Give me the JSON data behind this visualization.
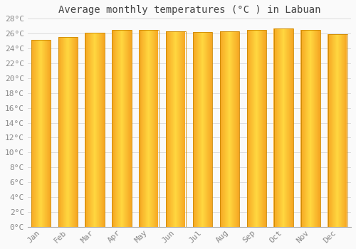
{
  "title": "Average monthly temperatures (°C ) in Labuan",
  "months": [
    "Jan",
    "Feb",
    "Mar",
    "Apr",
    "May",
    "Jun",
    "Jul",
    "Aug",
    "Sep",
    "Oct",
    "Nov",
    "Dec"
  ],
  "values": [
    25.2,
    25.5,
    26.1,
    26.5,
    26.5,
    26.3,
    26.2,
    26.3,
    26.5,
    26.7,
    26.5,
    25.9
  ],
  "ylim": [
    0,
    28
  ],
  "yticks": [
    0,
    2,
    4,
    6,
    8,
    10,
    12,
    14,
    16,
    18,
    20,
    22,
    24,
    26,
    28
  ],
  "bar_color_left": "#F5A623",
  "bar_color_center": "#FFD740",
  "bar_color_right": "#F5A623",
  "bar_edge_color": "#CC8800",
  "background_color": "#FAFAFA",
  "grid_color": "#DDDDDD",
  "title_fontsize": 10,
  "tick_fontsize": 8,
  "title_color": "#444444",
  "tick_color": "#888888",
  "bar_width": 0.72,
  "n_gradient_strips": 40
}
